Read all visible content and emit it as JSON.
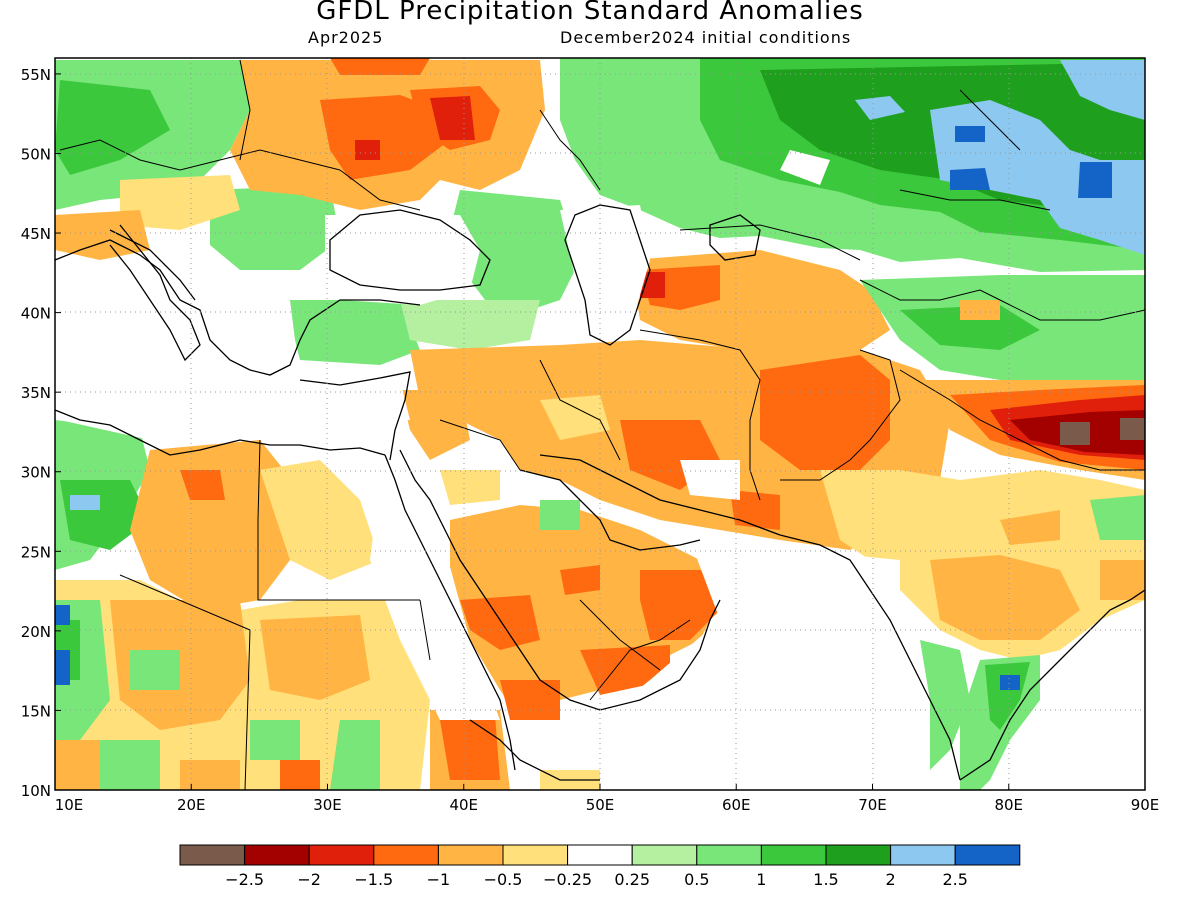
{
  "title": "GFDL Precipitation Standard Anomalies",
  "subtitle_left": "Apr2025",
  "subtitle_right": "December2024 initial conditions",
  "lon_ticks": [
    "10E",
    "20E",
    "30E",
    "40E",
    "50E",
    "60E",
    "70E",
    "80E",
    "90E"
  ],
  "lat_ticks": [
    "10N",
    "15N",
    "20N",
    "25N",
    "30N",
    "35N",
    "40N",
    "45N",
    "50N",
    "55N"
  ],
  "colorbar": {
    "colors": [
      "#7a5a4a",
      "#a30000",
      "#e0200a",
      "#ff6a10",
      "#ffb444",
      "#ffe07a",
      "#ffffff",
      "#b4f0a0",
      "#78e678",
      "#3cc83c",
      "#1ea01e",
      "#8cc8f0",
      "#1464c8"
    ],
    "labels": [
      "−2.5",
      "−2",
      "−1.5",
      "−1",
      "−0.5",
      "−0.25",
      "0.25",
      "0.5",
      "1",
      "1.5",
      "2",
      "2.5"
    ]
  },
  "map": {
    "lon_range": [
      10,
      90
    ],
    "lat_range": [
      10,
      56
    ]
  }
}
